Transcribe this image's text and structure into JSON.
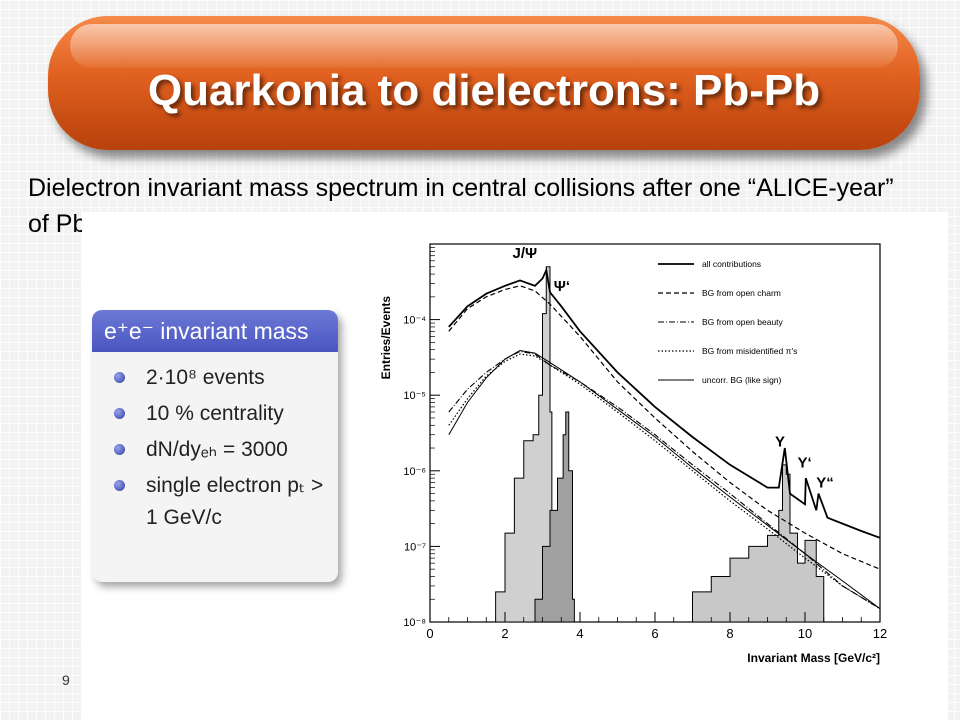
{
  "slide": {
    "title": "Quarkonia to dielectrons: Pb-Pb",
    "subtitle": "Dielectron invariant mass spectrum in central collisions after one “ALICE-year” of Pb-Pb data taking",
    "slide_number": "9"
  },
  "info_box": {
    "header": "e⁺e⁻ invariant mass",
    "items": [
      "2·10⁸ events",
      "10 % centrality",
      "dN/dyₑₕ = 3000",
      "single electron pₜ > 1 GeV/c"
    ]
  },
  "colors": {
    "title_bar": "#e0601f",
    "info_header": "#4a56c0",
    "histogram_fill": "#c8c8c8"
  },
  "chart_data": {
    "type": "line",
    "xlabel": "Invariant Mass [GeV/c²]",
    "ylabel": "Entries/Events",
    "xlim": [
      0,
      12
    ],
    "ylim": [
      1e-08,
      0.001
    ],
    "yscale": "log",
    "x_ticks": [
      "0",
      "2",
      "4",
      "6",
      "8",
      "10",
      "12"
    ],
    "y_ticks": [
      {
        "label": "10⁻⁸",
        "value": 1e-08
      },
      {
        "label": "10⁻⁷",
        "value": 1e-07
      },
      {
        "label": "10⁻⁶",
        "value": 1e-06
      },
      {
        "label": "10⁻⁵",
        "value": 1e-05
      },
      {
        "label": "10⁻⁴",
        "value": 0.0001
      }
    ],
    "legend_position": "top-right",
    "series": [
      {
        "name": "all contributions",
        "style": "solid",
        "x": [
          0.5,
          1.0,
          1.5,
          2.0,
          2.4,
          2.8,
          3.0,
          3.1,
          3.2,
          3.5,
          4,
          5,
          6,
          7,
          8,
          9,
          9.3,
          9.46,
          9.6,
          10,
          10.02,
          10.3,
          10.36,
          10.6,
          11,
          11.5,
          12
        ],
        "y": [
          8e-05,
          0.00015,
          0.00022,
          0.00028,
          0.00033,
          0.00028,
          0.00035,
          0.00045,
          0.00023,
          0.00015,
          7e-05,
          2e-05,
          7e-06,
          2.8e-06,
          1.2e-06,
          6e-07,
          6e-07,
          2e-06,
          5e-07,
          3.6e-07,
          8e-07,
          3e-07,
          5e-07,
          2.4e-07,
          2e-07,
          1.6e-07,
          1.3e-07
        ]
      },
      {
        "name": "BG from open charm",
        "style": "dashed",
        "x": [
          0.5,
          1.0,
          1.5,
          2.0,
          2.4,
          2.8,
          3.2,
          4,
          5,
          6,
          7,
          8,
          9,
          10,
          11,
          12
        ],
        "y": [
          7e-05,
          0.00014,
          0.0002,
          0.00025,
          0.00028,
          0.00024,
          0.00016,
          6e-05,
          1.5e-05,
          5e-06,
          1.8e-06,
          7e-07,
          3e-07,
          1.5e-07,
          8e-08,
          5e-08
        ]
      },
      {
        "name": "BG from open beauty",
        "style": "dashdot",
        "x": [
          0.5,
          1.0,
          1.5,
          2.0,
          2.4,
          2.8,
          3.2,
          4,
          5,
          6,
          7,
          8,
          9,
          10,
          11,
          12
        ],
        "y": [
          6e-06,
          1.2e-05,
          2e-05,
          3e-05,
          3.8e-05,
          3.5e-05,
          2.5e-05,
          1.5e-05,
          7e-06,
          3e-06,
          1.2e-06,
          5e-07,
          2e-07,
          8e-08,
          3e-08,
          1.5e-08
        ]
      },
      {
        "name": "BG from misidentified π's",
        "style": "dotted",
        "x": [
          0.5,
          1.0,
          1.5,
          2.0,
          2.4,
          2.8,
          3.2,
          4,
          5,
          6,
          7,
          8,
          9,
          10,
          11,
          12
        ],
        "y": [
          4e-06,
          9e-06,
          1.8e-05,
          2.8e-05,
          3.5e-05,
          3.3e-05,
          2.5e-05,
          1.4e-05,
          6e-06,
          2.5e-06,
          1e-06,
          4e-07,
          1.7e-07,
          7e-08,
          3e-08,
          1.5e-08
        ]
      },
      {
        "name": "uncorr. BG (like sign)",
        "style": "solid-thin",
        "x": [
          0.5,
          1.0,
          1.5,
          2.0,
          2.4,
          2.8,
          3.2,
          4,
          5,
          6,
          7,
          8,
          9,
          10,
          11,
          12
        ],
        "y": [
          3e-06,
          8e-06,
          1.7e-05,
          3e-05,
          3.9e-05,
          3.6e-05,
          2.7e-05,
          1.5e-05,
          6.5e-06,
          2.8e-06,
          1.1e-06,
          4.5e-07,
          1.9e-07,
          8e-08,
          3.5e-08,
          1.5e-08
        ]
      }
    ],
    "histograms": [
      {
        "name": "J/Ψ signal",
        "fill": "#d0d0d0",
        "x": [
          1.5,
          1.75,
          2.0,
          2.25,
          2.5,
          2.75,
          2.9,
          3.0,
          3.1,
          3.2,
          3.25
        ],
        "y": [
          1e-08,
          2.5e-08,
          1.5e-07,
          8e-07,
          2.5e-06,
          3e-06,
          1e-05,
          0.00012,
          0.0005,
          6e-06,
          1e-08
        ]
      },
      {
        "name": "Ψ' signal",
        "fill": "#a0a0a0",
        "x": [
          2.8,
          3.0,
          3.2,
          3.4,
          3.55,
          3.62,
          3.7,
          3.8,
          3.85
        ],
        "y": [
          2e-08,
          1e-07,
          3e-07,
          8e-07,
          3e-06,
          6e-06,
          1e-06,
          2e-08,
          1e-08
        ]
      },
      {
        "name": "Υ signal",
        "fill": "#c8c8c8",
        "x": [
          6.5,
          7,
          7.5,
          8,
          8.5,
          9,
          9.3,
          9.4,
          9.5,
          9.6,
          9.8,
          10,
          10.3,
          10.5
        ],
        "y": [
          1e-08,
          2.5e-08,
          4e-08,
          7e-08,
          1e-07,
          1.4e-07,
          3e-07,
          1.2e-06,
          9e-07,
          1.5e-07,
          6e-08,
          1.2e-07,
          4e-08,
          1e-08
        ]
      }
    ],
    "annotations": [
      {
        "text": "J/Ψ",
        "x": 2.2,
        "y": 0.00065
      },
      {
        "text": "Ψ‘",
        "x": 3.3,
        "y": 0.00024
      },
      {
        "text": "Υ",
        "x": 9.2,
        "y": 2.1e-06
      },
      {
        "text": "Υ‘",
        "x": 9.8,
        "y": 1.1e-06
      },
      {
        "text": "Υ“",
        "x": 10.3,
        "y": 6e-07
      }
    ]
  }
}
